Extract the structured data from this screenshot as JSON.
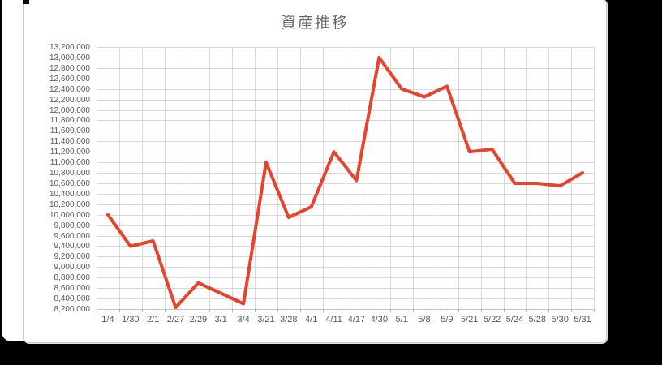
{
  "chart_data": {
    "type": "line",
    "title": "資産推移",
    "categories": [
      "1/4",
      "1/30",
      "2/1",
      "2/27",
      "2/29",
      "3/1",
      "3/4",
      "3/21",
      "3/28",
      "4/1",
      "4/11",
      "4/17",
      "4/30",
      "5/1",
      "5/8",
      "5/9",
      "5/21",
      "5/22",
      "5/24",
      "5/28",
      "5/30",
      "5/31"
    ],
    "values": [
      10000000,
      9400000,
      9500000,
      8230000,
      8700000,
      8500000,
      8300000,
      11000000,
      9950000,
      10150000,
      11200000,
      10650000,
      13000000,
      12400000,
      12250000,
      12450000,
      11200000,
      11250000,
      10600000,
      10600000,
      10550000,
      10800000
    ],
    "ylim": [
      8200000,
      13200000
    ],
    "ytick_step": 200000,
    "y_tick_labels": [
      "13,200,000",
      "13,000,000",
      "12,800,000",
      "12,600,000",
      "12,400,000",
      "12,200,000",
      "12,000,000",
      "11,800,000",
      "11,600,000",
      "11,400,000",
      "11,200,000",
      "11,000,000",
      "10,800,000",
      "10,600,000",
      "10,400,000",
      "10,200,000",
      "10,000,000",
      "9,800,000",
      "9,600,000",
      "9,400,000",
      "9,200,000",
      "9,000,000",
      "8,800,000",
      "8,600,000",
      "8,400,000",
      "8,200,000"
    ],
    "grid": true,
    "legend": "none",
    "line_color": "#e8432c",
    "colors": {
      "axis_text": "#595959",
      "title_text": "#6a6a6a",
      "gridline": "#d9d9d9",
      "axis_line": "#b9c3de",
      "tick_mark": "#a9b3cf",
      "card_border": "#c9c9c9",
      "card_bg": "#ffffff",
      "canvas_bg": "#000000"
    }
  }
}
